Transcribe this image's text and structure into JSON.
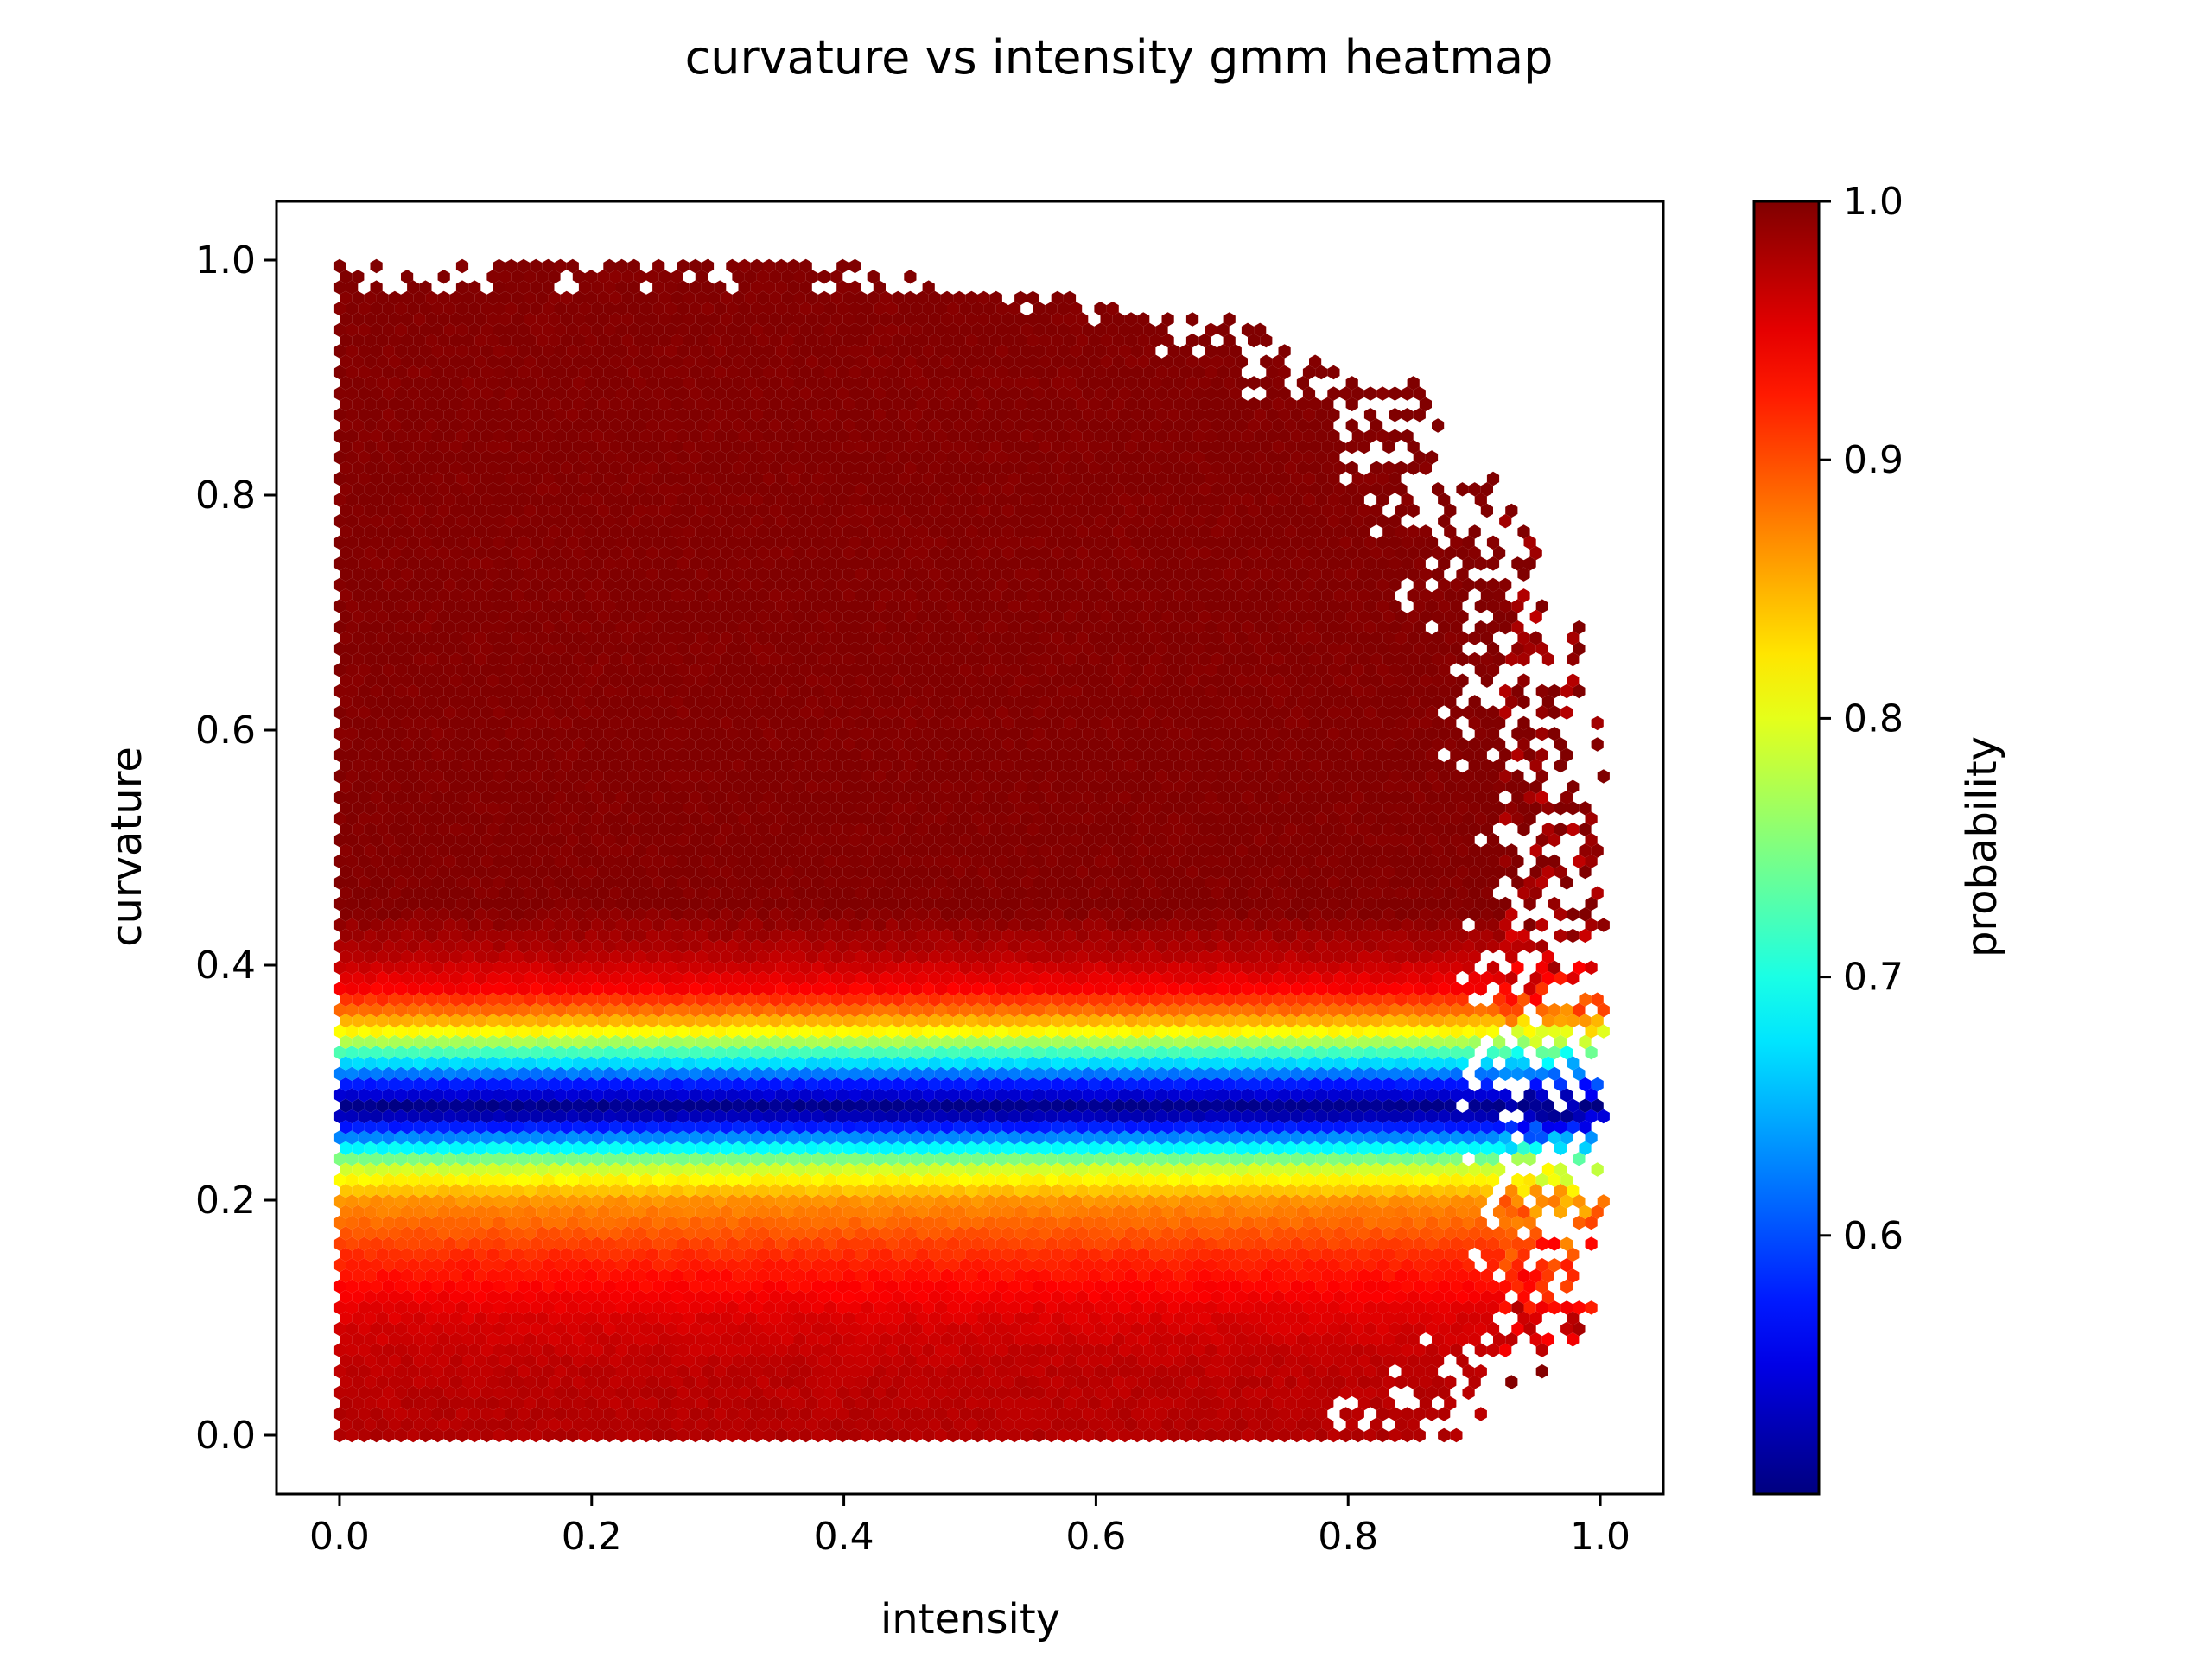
{
  "chart_data": {
    "type": "heatmap",
    "subtype": "hexbin",
    "title": "curvature vs intensity gmm heatmap",
    "xlabel": "intensity",
    "ylabel": "curvature",
    "xlim": [
      -0.05,
      1.05
    ],
    "ylim": [
      -0.05,
      1.05
    ],
    "xticks": [
      "0.0",
      "0.2",
      "0.4",
      "0.6",
      "0.8",
      "1.0"
    ],
    "yticks": [
      "0.0",
      "0.2",
      "0.4",
      "0.6",
      "0.8",
      "1.0"
    ],
    "colorbar": {
      "label": "probability",
      "colormap": "jet",
      "range": [
        0.5,
        1.0
      ],
      "ticks": [
        "0.6",
        "0.7",
        "0.8",
        "0.9",
        "1.0"
      ]
    },
    "color_profile_by_curvature": [
      {
        "curvature": 0.0,
        "probability": 0.975
      },
      {
        "curvature": 0.06,
        "probability": 0.97
      },
      {
        "curvature": 0.1,
        "probability": 0.955
      },
      {
        "curvature": 0.15,
        "probability": 0.92
      },
      {
        "curvature": 0.2,
        "probability": 0.865
      },
      {
        "curvature": 0.23,
        "probability": 0.78
      },
      {
        "curvature": 0.25,
        "probability": 0.65
      },
      {
        "curvature": 0.27,
        "probability": 0.53
      },
      {
        "curvature": 0.28,
        "probability": 0.505
      },
      {
        "curvature": 0.3,
        "probability": 0.58
      },
      {
        "curvature": 0.32,
        "probability": 0.69
      },
      {
        "curvature": 0.34,
        "probability": 0.8
      },
      {
        "curvature": 0.36,
        "probability": 0.88
      },
      {
        "curvature": 0.38,
        "probability": 0.94
      },
      {
        "curvature": 0.41,
        "probability": 0.975
      },
      {
        "curvature": 0.45,
        "probability": 1.0
      },
      {
        "curvature": 1.0,
        "probability": 1.0
      }
    ],
    "data_boundary": [
      {
        "curvature": 0.0,
        "intensity_max": 0.86
      },
      {
        "curvature": 0.1,
        "intensity_max": 0.99
      },
      {
        "curvature": 0.2,
        "intensity_max": 1.0
      },
      {
        "curvature": 0.3,
        "intensity_max": 1.0
      },
      {
        "curvature": 0.5,
        "intensity_max": 1.0
      },
      {
        "curvature": 0.6,
        "intensity_max": 0.98
      },
      {
        "curvature": 0.7,
        "intensity_max": 0.95
      },
      {
        "curvature": 0.8,
        "intensity_max": 0.9
      },
      {
        "curvature": 0.9,
        "intensity_max": 0.82
      },
      {
        "curvature": 0.95,
        "intensity_max": 0.68
      },
      {
        "curvature": 1.0,
        "intensity_max": 0.4
      }
    ]
  }
}
